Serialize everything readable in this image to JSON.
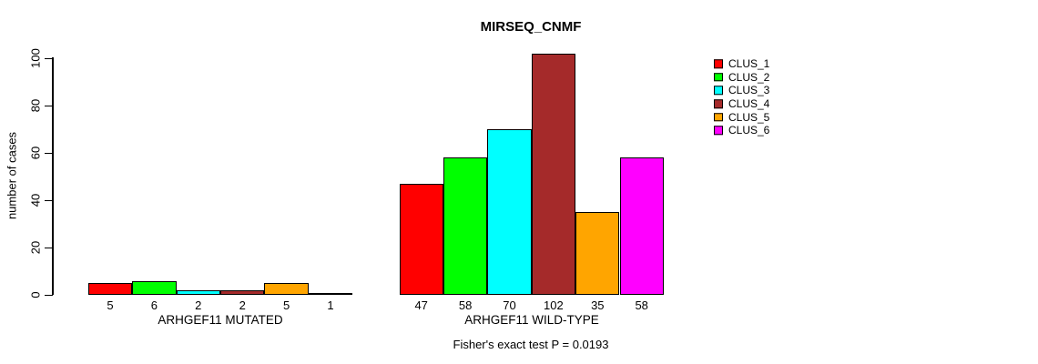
{
  "figure": {
    "background": "#ffffff",
    "text_color": "#000000"
  },
  "chart_data": {
    "type": "bar",
    "title": "MIRSEQ_CNMF",
    "xlabel": "",
    "ylabel": "number of cases",
    "ylim": [
      0,
      100
    ],
    "yticks": [
      0,
      20,
      40,
      60,
      80,
      100
    ],
    "grid": false,
    "legend_position": "top-right-outside",
    "series_names": [
      "CLUS_1",
      "CLUS_2",
      "CLUS_3",
      "CLUS_4",
      "CLUS_5",
      "CLUS_6"
    ],
    "series_colors": [
      "#FF0000",
      "#00FF00",
      "#00FFFF",
      "#A52A2A",
      "#FFA500",
      "#FF00FF"
    ],
    "groups": [
      {
        "label": "ARHGEF11 MUTATED",
        "values": [
          5,
          6,
          2,
          2,
          5,
          1
        ],
        "bar_labels": [
          "5",
          "6",
          "2",
          "2",
          "5",
          "1"
        ]
      },
      {
        "label": "ARHGEF11 WILD-TYPE",
        "values": [
          47,
          58,
          70,
          102,
          35,
          58
        ],
        "bar_labels": [
          "47",
          "58",
          "70",
          "102",
          "35",
          "58"
        ]
      }
    ],
    "legend": [
      {
        "label": "CLUS_1",
        "color": "#FF0000"
      },
      {
        "label": "CLUS_2",
        "color": "#00FF00"
      },
      {
        "label": "CLUS_3",
        "color": "#00FFFF"
      },
      {
        "label": "CLUS_4",
        "color": "#A52A2A"
      },
      {
        "label": "CLUS_5",
        "color": "#FFA500"
      },
      {
        "label": "CLUS_6",
        "color": "#FF00FF"
      }
    ],
    "annotation": "Fisher's exact test P = 0.0193"
  }
}
